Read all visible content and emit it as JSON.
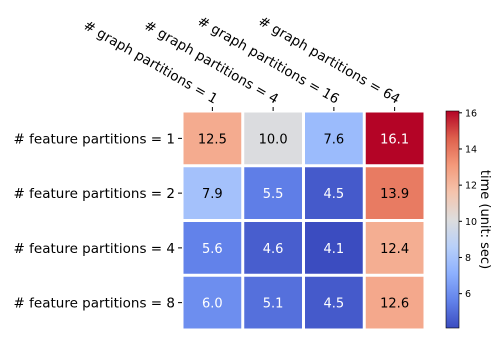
{
  "chart_data": {
    "type": "heatmap",
    "x": [
      "# graph partitions = 1",
      "# graph partitions = 4",
      "# graph partitions = 16",
      "# graph partitions = 64"
    ],
    "y": [
      "# feature partitions = 1",
      "# feature partitions = 2",
      "# feature partitions = 4",
      "# feature partitions = 8"
    ],
    "values": [
      [
        12.5,
        10.0,
        7.6,
        16.1
      ],
      [
        7.9,
        5.5,
        4.5,
        13.9
      ],
      [
        5.6,
        4.6,
        4.1,
        12.4
      ],
      [
        6.0,
        5.1,
        4.5,
        12.6
      ]
    ],
    "value_labels": [
      [
        "12.5",
        "10.0",
        "7.6",
        "16.1"
      ],
      [
        "7.9",
        "5.5",
        "4.5",
        "13.9"
      ],
      [
        "5.6",
        "4.6",
        "4.1",
        "12.4"
      ],
      [
        "6.0",
        "5.1",
        "4.5",
        "12.6"
      ]
    ],
    "colormap": "coolwarm",
    "vmin": 4.1,
    "vmax": 16.1,
    "colorbar": {
      "label": "time (unit: sec)",
      "ticks": [
        6,
        8,
        10,
        12,
        14,
        16
      ],
      "tick_labels": [
        "6",
        "8",
        "10",
        "12",
        "14",
        "16"
      ]
    },
    "x_tick_position": "top",
    "grid": false
  }
}
